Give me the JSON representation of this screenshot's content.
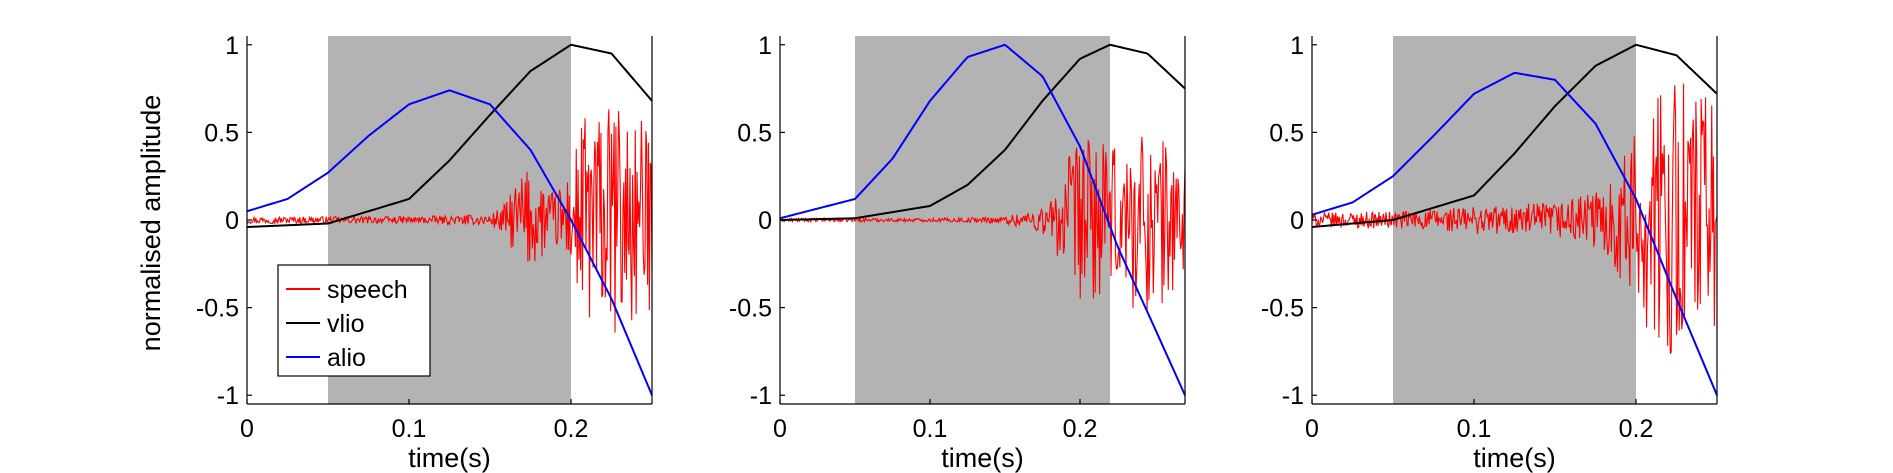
{
  "figure": {
    "ylabel": "normalised amplitude",
    "xlabel": "time(s)"
  },
  "colors": {
    "speech": "#ff0000",
    "vlio": "#000000",
    "alio": "#0000ff",
    "shade": "#b3b3b3"
  },
  "legend": {
    "items": [
      {
        "label": "speech",
        "color": "#ff0000"
      },
      {
        "label": "vlio",
        "color": "#000000"
      },
      {
        "label": "alio",
        "color": "#0000ff"
      }
    ]
  },
  "chart_data": [
    {
      "type": "line",
      "xlabel": "time(s)",
      "ylabel": "normalised amplitude",
      "xlim": [
        0,
        0.25
      ],
      "ylim": [
        -1.05,
        1.05
      ],
      "xticks": [
        0,
        0.1,
        0.2
      ],
      "xtick_labels": [
        "0",
        "0.1",
        "0.2"
      ],
      "yticks": [
        -1,
        -0.5,
        0,
        0.5,
        1
      ],
      "ytick_labels": [
        "-1",
        "-0.5",
        "0",
        "0.5",
        "1"
      ],
      "shaded_interval": [
        0.05,
        0.2
      ],
      "legend_position": "lower-left",
      "series": [
        {
          "name": "speech",
          "description": "noisy speech waveform, near zero until ~0.16 s then bursts to about ±0.7",
          "x": [
            0,
            0.05,
            0.1,
            0.15,
            0.16,
            0.17,
            0.18,
            0.19,
            0.2,
            0.21,
            0.22,
            0.23,
            0.24,
            0.25
          ],
          "envelope": [
            0.02,
            0.02,
            0.02,
            0.03,
            0.1,
            0.3,
            0.25,
            0.15,
            0.3,
            0.7,
            0.6,
            0.7,
            0.6,
            0.5
          ]
        },
        {
          "name": "vlio",
          "x": [
            0,
            0.05,
            0.1,
            0.125,
            0.15,
            0.175,
            0.2,
            0.225,
            0.25
          ],
          "y": [
            -0.04,
            -0.02,
            0.12,
            0.34,
            0.6,
            0.85,
            1.0,
            0.95,
            0.68
          ]
        },
        {
          "name": "alio",
          "x": [
            0,
            0.025,
            0.05,
            0.075,
            0.1,
            0.125,
            0.15,
            0.175,
            0.2,
            0.225,
            0.25
          ],
          "y": [
            0.05,
            0.12,
            0.27,
            0.48,
            0.66,
            0.74,
            0.66,
            0.4,
            0.0,
            -0.45,
            -1.0
          ]
        }
      ]
    },
    {
      "type": "line",
      "xlabel": "time(s)",
      "ylabel": "",
      "xlim": [
        0,
        0.27
      ],
      "ylim": [
        -1.05,
        1.05
      ],
      "xticks": [
        0,
        0.1,
        0.2
      ],
      "xtick_labels": [
        "0",
        "0.1",
        "0.2"
      ],
      "yticks": [
        -1,
        -0.5,
        0,
        0.5,
        1
      ],
      "ytick_labels": [
        "-1",
        "-0.5",
        "0",
        "0.5",
        "1"
      ],
      "shaded_interval": [
        0.05,
        0.22
      ],
      "series": [
        {
          "name": "speech",
          "description": "near zero until ~0.18 s then bursts to about ±0.6",
          "x": [
            0,
            0.05,
            0.1,
            0.15,
            0.18,
            0.19,
            0.2,
            0.21,
            0.22,
            0.23,
            0.24,
            0.25,
            0.26,
            0.27
          ],
          "envelope": [
            0.01,
            0.01,
            0.01,
            0.02,
            0.1,
            0.35,
            0.45,
            0.5,
            0.4,
            0.45,
            0.55,
            0.5,
            0.45,
            0.4
          ]
        },
        {
          "name": "vlio",
          "x": [
            0,
            0.05,
            0.1,
            0.125,
            0.15,
            0.175,
            0.2,
            0.22,
            0.245,
            0.27
          ],
          "y": [
            0.0,
            0.01,
            0.08,
            0.2,
            0.4,
            0.68,
            0.92,
            1.0,
            0.95,
            0.75
          ]
        },
        {
          "name": "alio",
          "x": [
            0,
            0.05,
            0.075,
            0.1,
            0.125,
            0.15,
            0.175,
            0.2,
            0.225,
            0.25,
            0.27
          ],
          "y": [
            0.01,
            0.12,
            0.35,
            0.68,
            0.93,
            1.0,
            0.82,
            0.42,
            -0.15,
            -0.62,
            -1.0
          ]
        }
      ]
    },
    {
      "type": "line",
      "xlabel": "time(s)",
      "ylabel": "",
      "xlim": [
        0,
        0.25
      ],
      "ylim": [
        -1.05,
        1.05
      ],
      "xticks": [
        0,
        0.1,
        0.2
      ],
      "xtick_labels": [
        "0",
        "0.1",
        "0.2"
      ],
      "yticks": [
        -1,
        -0.5,
        0,
        0.5,
        1
      ],
      "ytick_labels": [
        "-1",
        "-0.5",
        "0",
        "0.5",
        "1"
      ],
      "shaded_interval": [
        0.05,
        0.2
      ],
      "series": [
        {
          "name": "speech",
          "description": "small oscillations growing through the shaded region, large bursts (~±0.9) after 0.2 s",
          "x": [
            0,
            0.05,
            0.1,
            0.15,
            0.18,
            0.2,
            0.21,
            0.22,
            0.23,
            0.24,
            0.25
          ],
          "envelope": [
            0.04,
            0.05,
            0.08,
            0.1,
            0.18,
            0.5,
            0.7,
            0.75,
            0.85,
            0.8,
            0.7
          ]
        },
        {
          "name": "vlio",
          "x": [
            0,
            0.05,
            0.1,
            0.125,
            0.15,
            0.175,
            0.2,
            0.225,
            0.25
          ],
          "y": [
            -0.04,
            0.0,
            0.14,
            0.38,
            0.65,
            0.88,
            1.0,
            0.94,
            0.72
          ]
        },
        {
          "name": "alio",
          "x": [
            0,
            0.025,
            0.05,
            0.075,
            0.1,
            0.125,
            0.15,
            0.175,
            0.2,
            0.225,
            0.25
          ],
          "y": [
            0.03,
            0.1,
            0.25,
            0.48,
            0.72,
            0.84,
            0.8,
            0.55,
            0.12,
            -0.45,
            -1.0
          ]
        }
      ]
    }
  ]
}
